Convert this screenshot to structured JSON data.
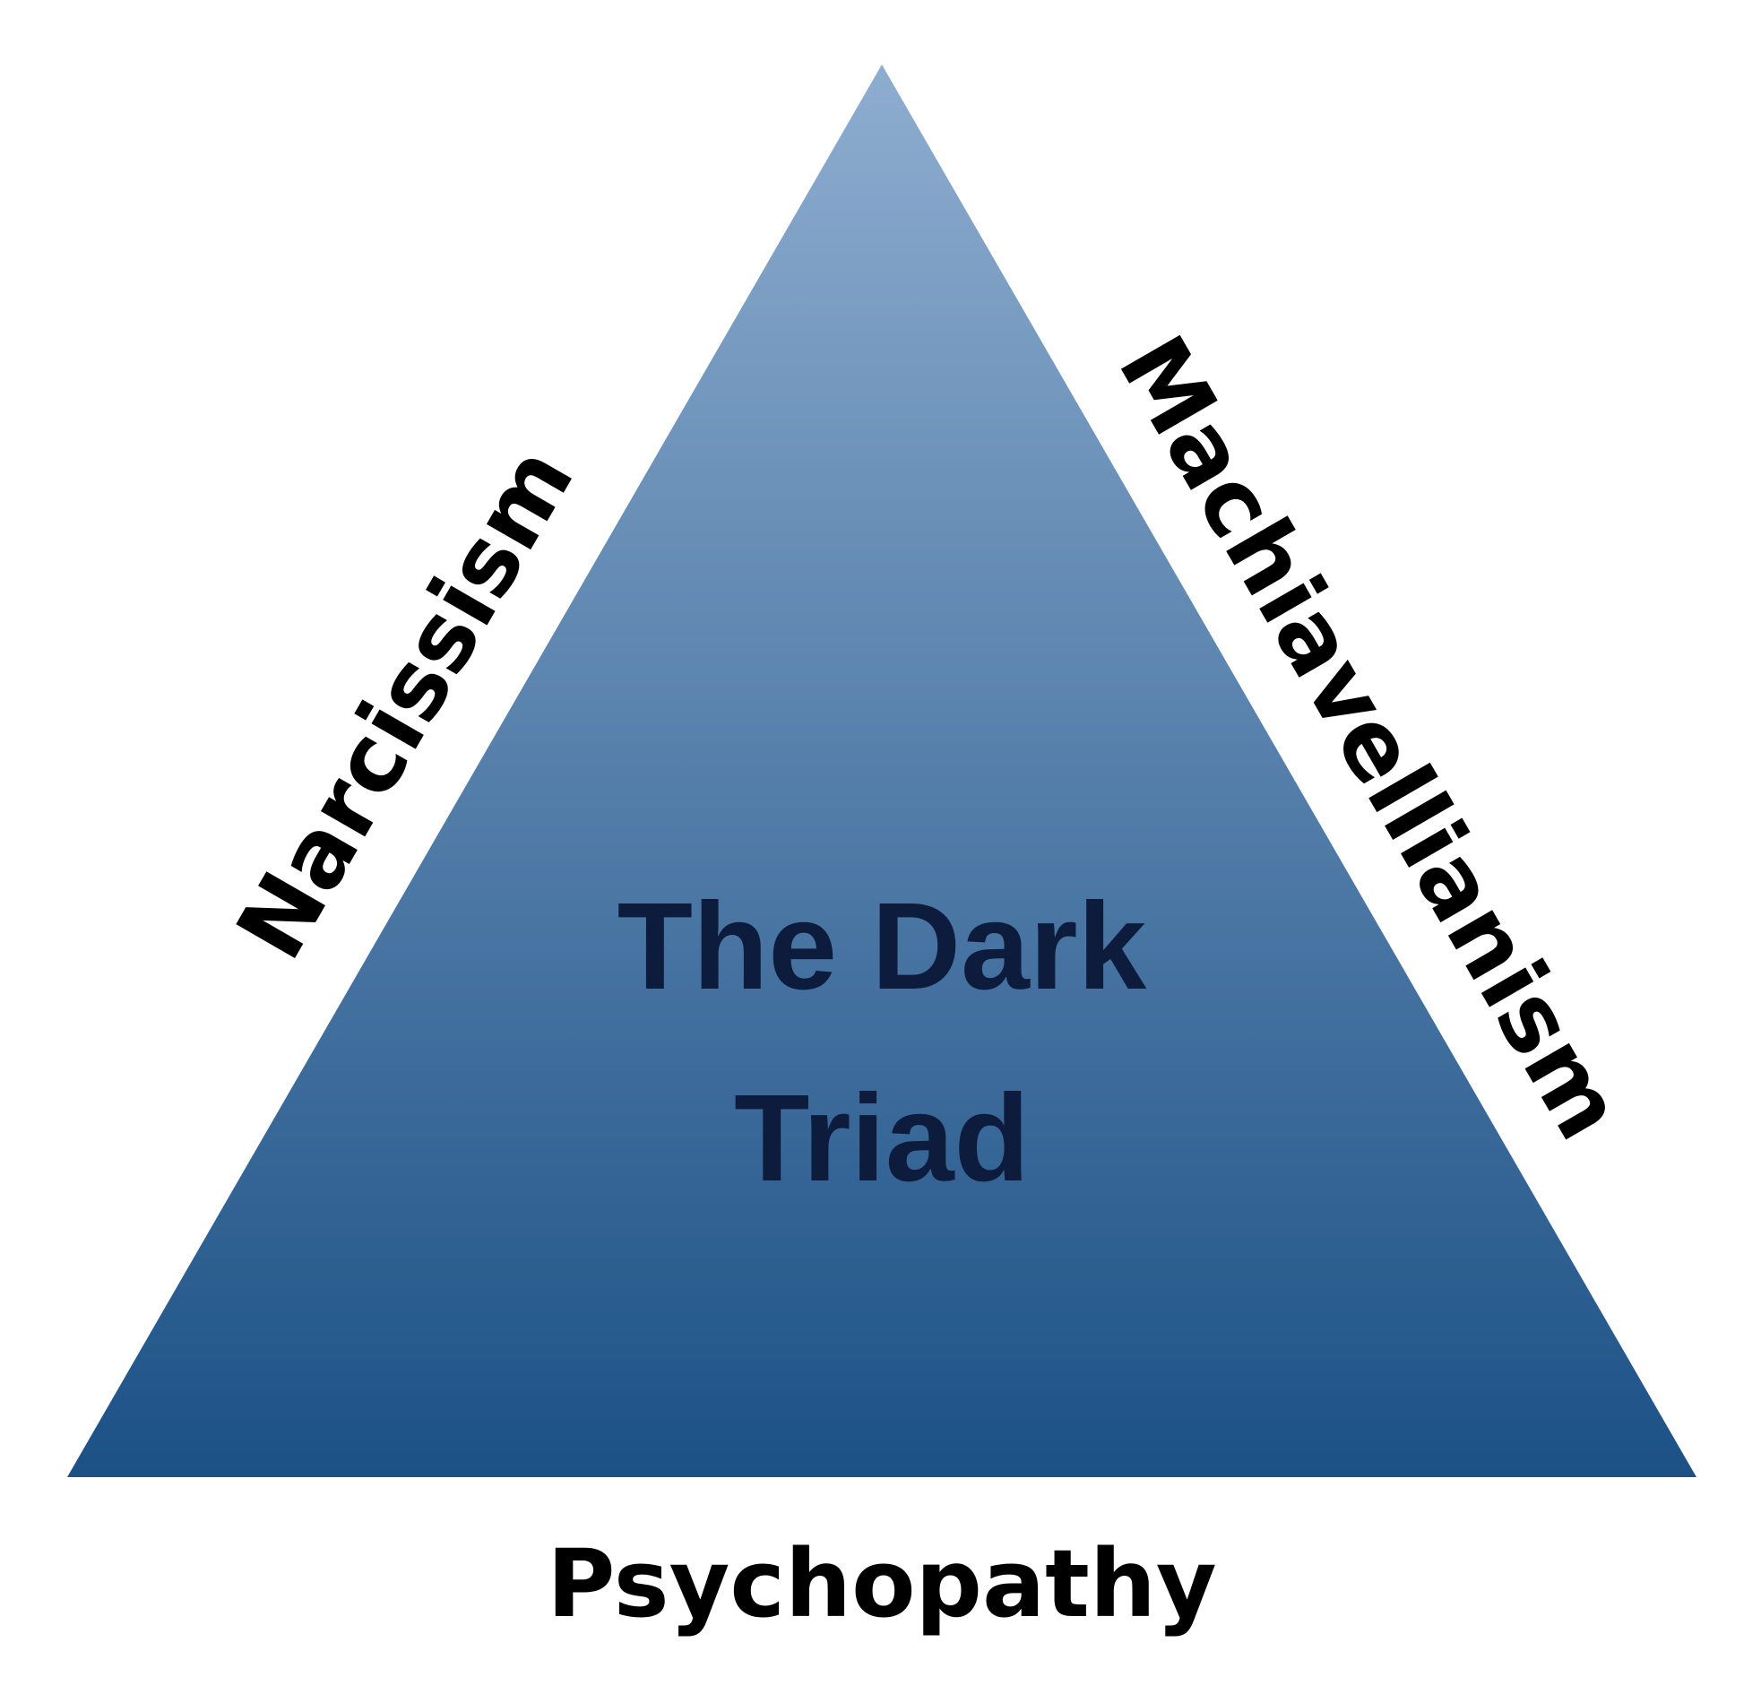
{
  "diagram": {
    "center_title_line1": "The Dark",
    "center_title_line2": "Triad",
    "left_label": "Narcissism",
    "right_label": "Machiavellianism",
    "bottom_label": "Psychopathy"
  },
  "colors": {
    "triangle_top": "#8EADCF",
    "triangle_bottom": "#1C5186",
    "title_text": "#0D1C3D",
    "label_text": "#000000",
    "background": "#FFFFFF"
  }
}
